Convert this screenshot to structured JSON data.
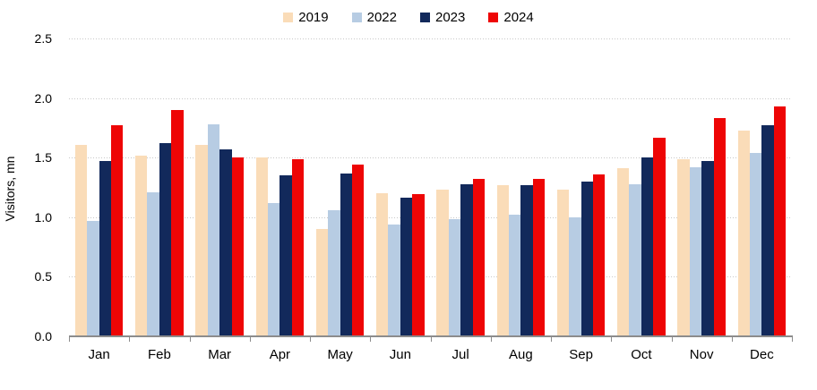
{
  "chart_data": {
    "type": "bar",
    "title": "",
    "xlabel": "",
    "ylabel": "Visitors, mn",
    "ylim": [
      0,
      2.5
    ],
    "ytick_labels": [
      "0.0",
      "0.5",
      "1.0",
      "1.5",
      "2.0",
      "2.5"
    ],
    "grid": "horizontal-dotted",
    "legend_position": "top-center",
    "axis_color": "#8c8c8c",
    "gridline_color": "#c8c8c8",
    "categories": [
      "Jan",
      "Feb",
      "Mar",
      "Apr",
      "May",
      "Jun",
      "Jul",
      "Aug",
      "Sep",
      "Oct",
      "Nov",
      "Dec"
    ],
    "series": [
      {
        "name": "2019",
        "color": "#FADCB8",
        "values": [
          1.61,
          1.52,
          1.61,
          1.5,
          0.9,
          1.2,
          1.23,
          1.27,
          1.23,
          1.41,
          1.49,
          1.73
        ]
      },
      {
        "name": "2022",
        "color": "#B7CCE3",
        "values": [
          0.97,
          1.21,
          1.78,
          1.12,
          1.06,
          0.94,
          0.98,
          1.02,
          1.0,
          1.28,
          1.42,
          1.54
        ]
      },
      {
        "name": "2023",
        "color": "#12295B",
        "values": [
          1.47,
          1.62,
          1.57,
          1.35,
          1.37,
          1.16,
          1.28,
          1.27,
          1.3,
          1.5,
          1.47,
          1.77
        ]
      },
      {
        "name": "2024",
        "color": "#EE0505",
        "values": [
          1.77,
          1.9,
          1.5,
          1.49,
          1.44,
          1.19,
          1.32,
          1.32,
          1.36,
          1.67,
          1.83,
          1.93
        ]
      }
    ]
  }
}
